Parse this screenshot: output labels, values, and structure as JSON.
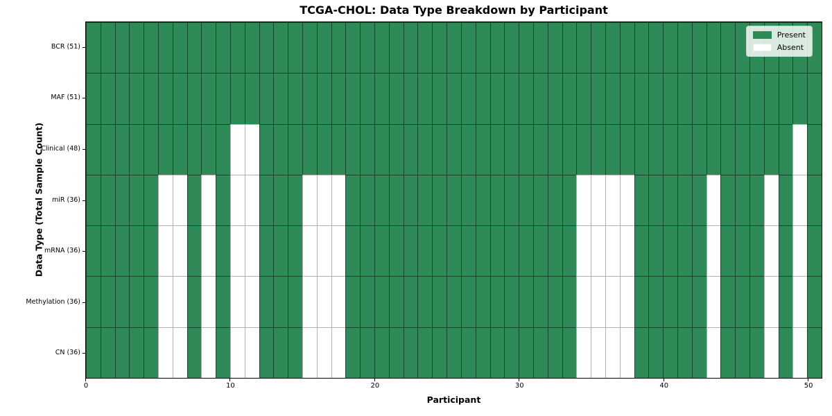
{
  "chart_data": {
    "type": "heatmap",
    "title": "TCGA-CHOL: Data Type Breakdown by Participant",
    "xlabel": "Participant",
    "ylabel": "Data Type (Total Sample Count)",
    "n_participants": 51,
    "x_ticks": [
      0,
      10,
      20,
      30,
      40,
      50
    ],
    "x_tick_labels": [
      "0",
      "10",
      "20",
      "30",
      "40",
      "50"
    ],
    "grid": true,
    "colors": {
      "present": "#2E8B57",
      "absent": "#FFFFFF"
    },
    "legend": {
      "position": "upper right",
      "entries": [
        {
          "label": "Present",
          "color": "#2E8B57"
        },
        {
          "label": "Absent",
          "color": "#FFFFFF"
        }
      ]
    },
    "rows": [
      {
        "label": "BCR (51)",
        "data_type": "BCR",
        "present_count": 51,
        "absent_participants": []
      },
      {
        "label": "MAF (51)",
        "data_type": "MAF",
        "present_count": 51,
        "absent_participants": []
      },
      {
        "label": "Clinical (48)",
        "data_type": "Clinical",
        "present_count": 48,
        "absent_participants": [
          10,
          11,
          49
        ]
      },
      {
        "label": "miR (36)",
        "data_type": "miR",
        "present_count": 36,
        "absent_participants": [
          5,
          6,
          8,
          10,
          11,
          15,
          16,
          17,
          34,
          35,
          36,
          37,
          43,
          47,
          49
        ]
      },
      {
        "label": "mRNA (36)",
        "data_type": "mRNA",
        "present_count": 36,
        "absent_participants": [
          5,
          6,
          8,
          10,
          11,
          15,
          16,
          17,
          34,
          35,
          36,
          37,
          43,
          47,
          49
        ]
      },
      {
        "label": "Methylation (36)",
        "data_type": "Methylation",
        "present_count": 36,
        "absent_participants": [
          5,
          6,
          8,
          10,
          11,
          15,
          16,
          17,
          34,
          35,
          36,
          37,
          43,
          47,
          49
        ]
      },
      {
        "label": "CN (36)",
        "data_type": "CN",
        "present_count": 36,
        "absent_participants": [
          5,
          6,
          8,
          10,
          11,
          15,
          16,
          17,
          34,
          35,
          36,
          37,
          43,
          47,
          49
        ]
      }
    ]
  }
}
